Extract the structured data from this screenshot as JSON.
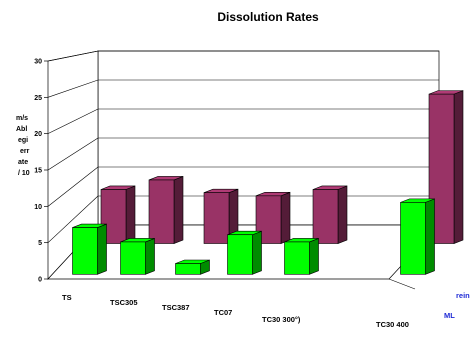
{
  "chart_data": {
    "type": "bar",
    "title": "Dissolution Rates",
    "ylabel_lines": [
      "m/s",
      "Abl",
      "egi",
      "err",
      "ate",
      "/ 10"
    ],
    "ylim": [
      0,
      30
    ],
    "yticks": [
      "0",
      "5",
      "10",
      "15",
      "20",
      "25",
      "30"
    ],
    "categories": [
      "TS",
      "TSC305",
      "TSC387",
      "TC07",
      "TC30 300°)",
      "TC30 400"
    ],
    "series": [
      {
        "name": "rein",
        "values": [
          8.5,
          10,
          8,
          7.5,
          8.5,
          23.5
        ],
        "color": "#993366"
      },
      {
        "name": "ML",
        "values": [
          6.5,
          4.5,
          1.5,
          5.5,
          4.5,
          10
        ],
        "color": "#00ff00"
      }
    ],
    "grid": true,
    "layout": "3d-grouped-depth"
  }
}
